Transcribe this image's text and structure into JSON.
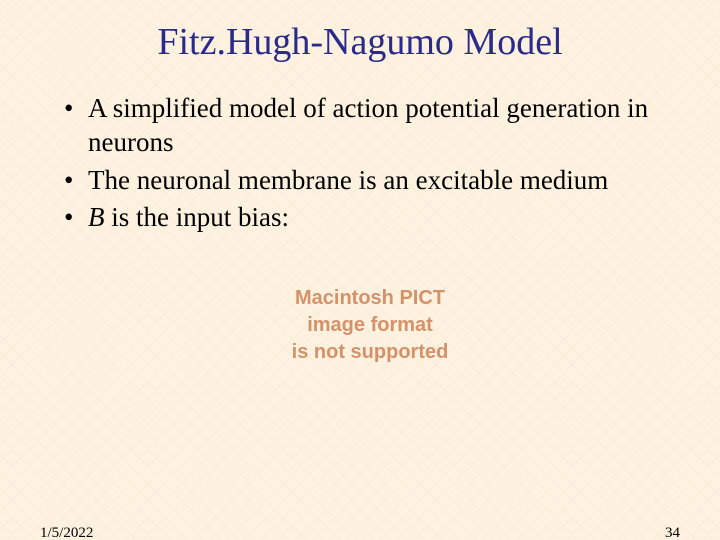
{
  "slide": {
    "title": "Fitz.Hugh-Nagumo Model",
    "title_color": "#2a2a8a",
    "title_fontsize": 38,
    "background_color": "#fdf2e0",
    "bullets": [
      {
        "text": "A simplified model of action potential generation in neurons"
      },
      {
        "text": "The neuronal membrane is an excitable medium"
      },
      {
        "prefix_italic": "B",
        "rest": " is the input bias:"
      }
    ],
    "bullet_fontsize": 27,
    "placeholder": {
      "line1": "Macintosh PICT",
      "line2": "image format",
      "line3": "is not supported",
      "color": "#d4916a",
      "fontsize": 20
    },
    "footer": {
      "date": "1/5/2022",
      "page": "34",
      "fontsize": 15
    }
  }
}
